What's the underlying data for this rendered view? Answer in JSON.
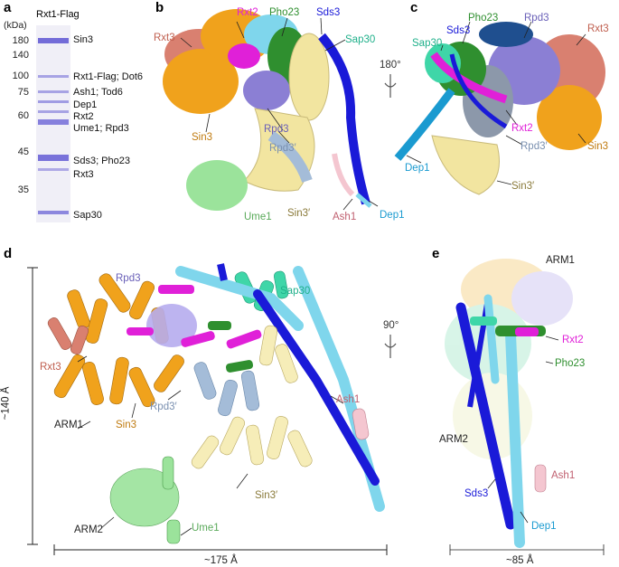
{
  "panels": {
    "a": {
      "letter": "a",
      "lane_title": "Rxt1-Flag",
      "unit": "(kDa)",
      "markers": [
        "180",
        "140",
        "100",
        "75",
        "60",
        "45",
        "35"
      ],
      "bands": [
        "Sin3",
        "Rxt1-Flag; Dot6",
        "Ash1; Tod6",
        "Dep1",
        "Rxt2",
        "Ume1; Rpd3",
        "Sds3; Pho23",
        "Rxt3",
        "Sap30"
      ]
    },
    "b": {
      "letter": "b",
      "labels": [
        "Rxt2",
        "Pho23",
        "Sds3",
        "Sap30",
        "Rxt3",
        "Sin3",
        "Rpd3",
        "Rpd3′",
        "Ume1",
        "Sin3′",
        "Ash1",
        "Dep1"
      ],
      "rotation": "180°"
    },
    "c": {
      "letter": "c",
      "labels": [
        "Pho23",
        "Rpd3",
        "Rxt3",
        "Sap30",
        "Sds3",
        "Rxt2",
        "Rpd3′",
        "Sin3",
        "Dep1",
        "Sin3′"
      ]
    },
    "d": {
      "letter": "d",
      "labels": [
        "Rpd3",
        "Sap30",
        "Rxt3",
        "Sin3",
        "ARM1",
        "Rpd3′",
        "Ash1",
        "Sin3′",
        "ARM2",
        "Ume1"
      ],
      "vertical_dim": "~140 Å",
      "horizontal_dim": "~175 Å",
      "rotation": "90°"
    },
    "e": {
      "letter": "e",
      "labels": [
        "ARM1",
        "Rxt2",
        "Pho23",
        "ARM2",
        "Ash1",
        "Sds3",
        "Dep1"
      ],
      "horizontal_dim": "~85 Å"
    }
  },
  "colors": {
    "sin3": "#f0a21c",
    "rxt3": "#d98070",
    "rpd3": "#8b7fd4",
    "rxt2": "#e020d8",
    "pho23": "#2f8f2f",
    "sds3": "#1a1ad8",
    "sap30": "#3fd6a8",
    "dep1": "#7fd6ec",
    "rpd3p": "#a4bcd8",
    "sin3p": "#f2e5a0",
    "ume1": "#9be39b",
    "ash1": "#f4c6d0"
  }
}
